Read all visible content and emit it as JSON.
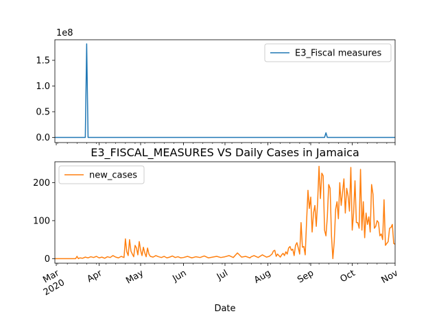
{
  "chart_data": [
    {
      "type": "line",
      "title": "",
      "xlabel": "",
      "ylabel": "",
      "offset_label": "1e8",
      "xlim": [
        "2020-02-29",
        "2020-11-01"
      ],
      "ylim": [
        -0.1,
        1.9
      ],
      "yticks": [
        {
          "value": 0.0,
          "label": "0.0"
        },
        {
          "value": 0.5,
          "label": "0.5"
        },
        {
          "value": 1.0,
          "label": "1.0"
        },
        {
          "value": 1.5,
          "label": "1.5"
        }
      ],
      "legend": {
        "placement": "top-right"
      },
      "series": [
        {
          "name": "E3_Fiscal measures",
          "color": "#1f77b4",
          "x": [
            "2020-02-29",
            "2020-03-22",
            "2020-03-23",
            "2020-03-24",
            "2020-03-25",
            "2020-09-11",
            "2020-09-12",
            "2020-09-13",
            "2020-11-01"
          ],
          "y": [
            0,
            0,
            1.82,
            0,
            0,
            0,
            0.09,
            0,
            0
          ]
        }
      ]
    },
    {
      "type": "line",
      "title": "E3_FISCAL_MEASURES VS Daily Cases in Jamaica",
      "xlabel": "Date",
      "ylabel": "",
      "xlim": [
        "2020-02-29",
        "2020-11-01"
      ],
      "ylim": [
        -12,
        255
      ],
      "yticks": [
        {
          "value": 0,
          "label": "0"
        },
        {
          "value": 100,
          "label": "100"
        },
        {
          "value": 200,
          "label": "200"
        }
      ],
      "xticks": [
        {
          "date": "2020-03-01",
          "label": "Mar",
          "sublabel": "2020"
        },
        {
          "date": "2020-04-01",
          "label": "Apr"
        },
        {
          "date": "2020-05-01",
          "label": "May"
        },
        {
          "date": "2020-06-01",
          "label": "Jun"
        },
        {
          "date": "2020-07-01",
          "label": "Jul"
        },
        {
          "date": "2020-08-01",
          "label": "Aug"
        },
        {
          "date": "2020-09-01",
          "label": "Sep"
        },
        {
          "date": "2020-10-01",
          "label": "Oct"
        },
        {
          "date": "2020-11-01",
          "label": "Nov"
        }
      ],
      "legend": {
        "placement": "top-left"
      },
      "series": [
        {
          "name": "new_cases",
          "color": "#ff7f0e",
          "x": [
            "2020-02-29",
            "2020-03-10",
            "2020-03-15",
            "2020-03-16",
            "2020-03-17",
            "2020-03-18",
            "2020-03-20",
            "2020-03-22",
            "2020-03-24",
            "2020-03-26",
            "2020-03-28",
            "2020-03-30",
            "2020-04-01",
            "2020-04-03",
            "2020-04-05",
            "2020-04-07",
            "2020-04-09",
            "2020-04-11",
            "2020-04-13",
            "2020-04-15",
            "2020-04-17",
            "2020-04-19",
            "2020-04-20",
            "2020-04-21",
            "2020-04-22",
            "2020-04-23",
            "2020-04-24",
            "2020-04-25",
            "2020-04-26",
            "2020-04-27",
            "2020-04-28",
            "2020-04-29",
            "2020-04-30",
            "2020-05-01",
            "2020-05-02",
            "2020-05-03",
            "2020-05-04",
            "2020-05-05",
            "2020-05-06",
            "2020-05-07",
            "2020-05-08",
            "2020-05-10",
            "2020-05-12",
            "2020-05-14",
            "2020-05-16",
            "2020-05-18",
            "2020-05-20",
            "2020-05-22",
            "2020-05-24",
            "2020-05-26",
            "2020-05-28",
            "2020-05-30",
            "2020-06-01",
            "2020-06-04",
            "2020-06-07",
            "2020-06-10",
            "2020-06-13",
            "2020-06-16",
            "2020-06-19",
            "2020-06-22",
            "2020-06-25",
            "2020-06-28",
            "2020-07-01",
            "2020-07-04",
            "2020-07-07",
            "2020-07-10",
            "2020-07-13",
            "2020-07-16",
            "2020-07-19",
            "2020-07-20",
            "2020-07-22",
            "2020-07-25",
            "2020-07-28",
            "2020-07-31",
            "2020-08-02",
            "2020-08-04",
            "2020-08-05",
            "2020-08-06",
            "2020-08-07",
            "2020-08-08",
            "2020-08-09",
            "2020-08-10",
            "2020-08-11",
            "2020-08-12",
            "2020-08-13",
            "2020-08-14",
            "2020-08-15",
            "2020-08-16",
            "2020-08-17",
            "2020-08-18",
            "2020-08-19",
            "2020-08-20",
            "2020-08-21",
            "2020-08-22",
            "2020-08-23",
            "2020-08-24",
            "2020-08-25",
            "2020-08-26",
            "2020-08-27",
            "2020-08-28",
            "2020-08-29",
            "2020-08-30",
            "2020-08-31",
            "2020-09-01",
            "2020-09-02",
            "2020-09-03",
            "2020-09-04",
            "2020-09-05",
            "2020-09-06",
            "2020-09-07",
            "2020-09-08",
            "2020-09-09",
            "2020-09-10",
            "2020-09-11",
            "2020-09-12",
            "2020-09-13",
            "2020-09-14",
            "2020-09-15",
            "2020-09-16",
            "2020-09-17",
            "2020-09-18",
            "2020-09-19",
            "2020-09-20",
            "2020-09-21",
            "2020-09-22",
            "2020-09-23",
            "2020-09-24",
            "2020-09-25",
            "2020-09-26",
            "2020-09-27",
            "2020-09-28",
            "2020-09-29",
            "2020-09-30",
            "2020-10-01",
            "2020-10-02",
            "2020-10-03",
            "2020-10-04",
            "2020-10-05",
            "2020-10-06",
            "2020-10-07",
            "2020-10-08",
            "2020-10-09",
            "2020-10-10",
            "2020-10-11",
            "2020-10-12",
            "2020-10-13",
            "2020-10-14",
            "2020-10-15",
            "2020-10-16",
            "2020-10-17",
            "2020-10-18",
            "2020-10-19",
            "2020-10-20",
            "2020-10-21",
            "2020-10-22",
            "2020-10-23",
            "2020-10-24",
            "2020-10-25",
            "2020-10-26",
            "2020-10-27",
            "2020-10-28",
            "2020-10-29",
            "2020-10-30",
            "2020-10-31",
            "2020-11-01"
          ],
          "y": [
            0,
            0,
            0,
            6,
            0,
            2,
            1,
            4,
            2,
            5,
            3,
            6,
            2,
            4,
            1,
            5,
            3,
            8,
            4,
            2,
            6,
            3,
            52,
            18,
            8,
            50,
            20,
            12,
            5,
            35,
            28,
            10,
            45,
            22,
            8,
            30,
            15,
            5,
            28,
            12,
            6,
            4,
            8,
            5,
            3,
            6,
            2,
            4,
            7,
            3,
            5,
            2,
            3,
            6,
            2,
            5,
            3,
            7,
            2,
            4,
            6,
            3,
            5,
            8,
            3,
            15,
            4,
            6,
            2,
            5,
            8,
            3,
            10,
            4,
            6,
            12,
            20,
            22,
            6,
            12,
            8,
            4,
            10,
            14,
            8,
            18,
            12,
            28,
            32,
            22,
            25,
            8,
            35,
            42,
            28,
            12,
            95,
            30,
            32,
            10,
            98,
            180,
            132,
            162,
            70,
            120,
            140,
            85,
            150,
            243,
            158,
            225,
            218,
            75,
            60,
            110,
            195,
            185,
            60,
            0,
            45,
            130,
            150,
            105,
            200,
            140,
            175,
            210,
            120,
            185,
            165,
            125,
            240,
            75,
            120,
            205,
            95,
            95,
            80,
            235,
            75,
            150,
            55,
            120,
            90,
            110,
            70,
            195,
            170,
            80,
            85,
            100,
            95,
            60,
            65,
            50,
            155,
            35,
            40,
            45,
            80,
            82,
            90,
            40,
            38
          ]
        }
      ]
    }
  ]
}
